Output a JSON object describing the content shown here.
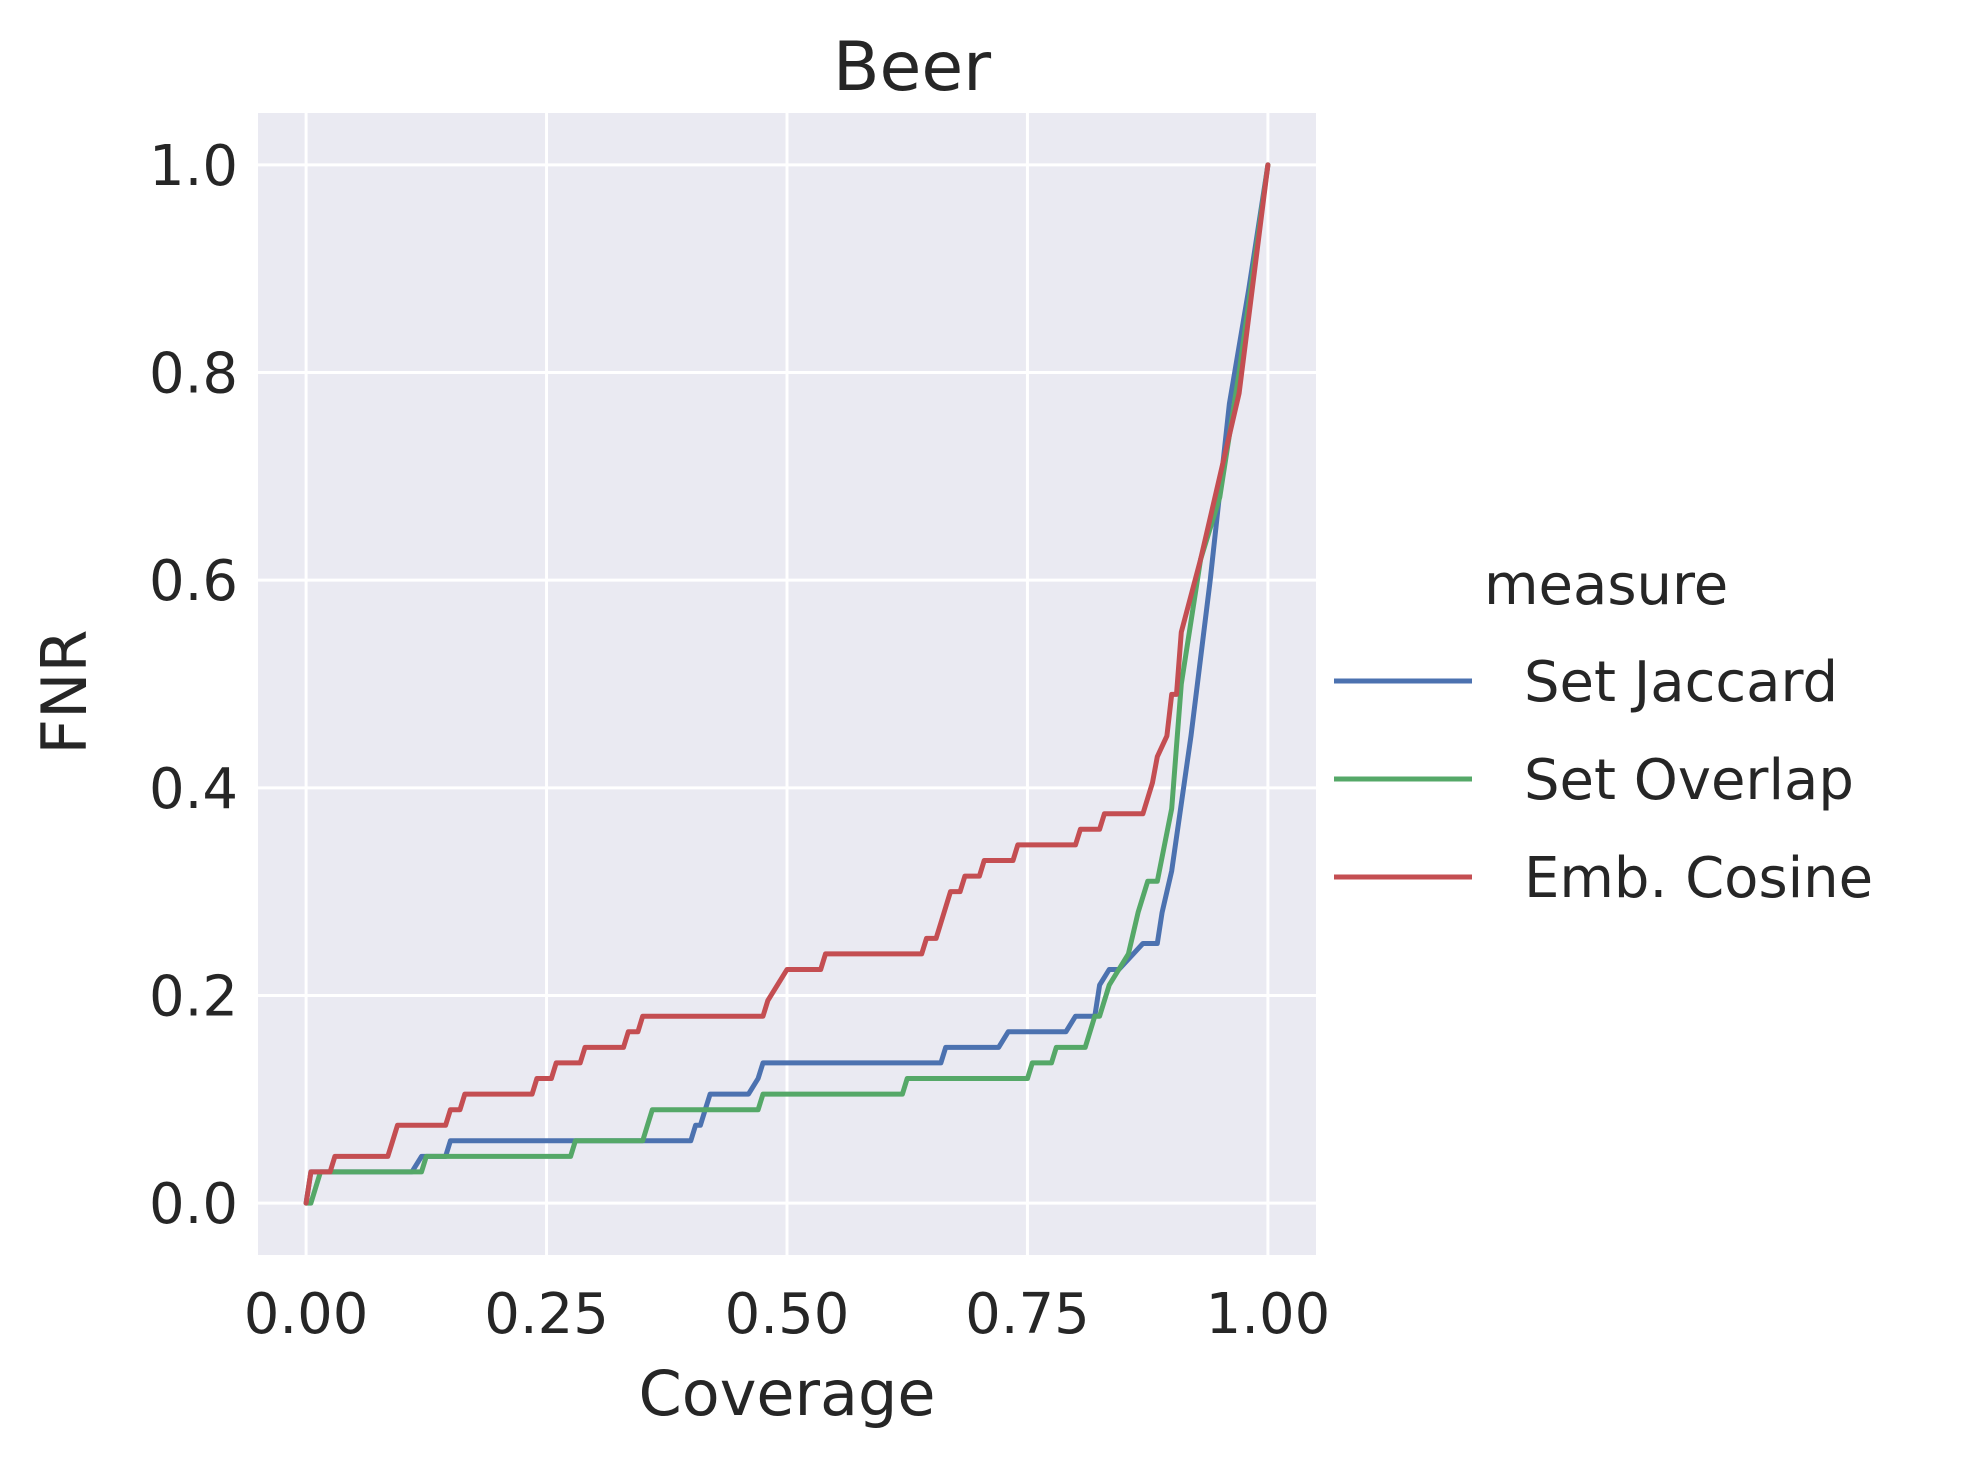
{
  "chart_data": {
    "type": "line",
    "title": "Beer",
    "xlabel": "Coverage",
    "ylabel": "FNR",
    "xlim": [
      -0.05,
      1.05
    ],
    "ylim": [
      -0.05,
      1.05
    ],
    "xticks": [
      0.0,
      0.25,
      0.5,
      0.75,
      1.0
    ],
    "xtick_labels": [
      "0.00",
      "0.25",
      "0.50",
      "0.75",
      "1.00"
    ],
    "yticks": [
      0.0,
      0.2,
      0.4,
      0.6,
      0.8,
      1.0
    ],
    "ytick_labels": [
      "0.0",
      "0.2",
      "0.4",
      "0.6",
      "0.8",
      "1.0"
    ],
    "grid": true,
    "background": "#EAEAF2",
    "legend": {
      "title": "measure",
      "placement": "right"
    },
    "series": [
      {
        "name": "Set Jaccard",
        "color": "#4C72B0",
        "x": [
          0.0,
          0.005,
          0.015,
          0.11,
          0.12,
          0.145,
          0.15,
          0.4,
          0.405,
          0.41,
          0.415,
          0.42,
          0.46,
          0.47,
          0.475,
          0.66,
          0.665,
          0.72,
          0.73,
          0.79,
          0.8,
          0.82,
          0.825,
          0.835,
          0.845,
          0.86,
          0.87,
          0.885,
          0.89,
          0.9,
          0.92,
          0.94,
          0.96,
          0.98,
          1.0
        ],
        "y": [
          0.0,
          0.03,
          0.03,
          0.03,
          0.045,
          0.045,
          0.06,
          0.06,
          0.075,
          0.075,
          0.09,
          0.105,
          0.105,
          0.12,
          0.135,
          0.135,
          0.15,
          0.15,
          0.165,
          0.165,
          0.18,
          0.18,
          0.21,
          0.225,
          0.225,
          0.24,
          0.25,
          0.25,
          0.28,
          0.32,
          0.45,
          0.6,
          0.77,
          0.88,
          1.0
        ]
      },
      {
        "name": "Set Overlap",
        "color": "#55A868",
        "x": [
          0.0,
          0.005,
          0.01,
          0.015,
          0.12,
          0.125,
          0.275,
          0.28,
          0.35,
          0.355,
          0.36,
          0.47,
          0.475,
          0.62,
          0.625,
          0.75,
          0.755,
          0.775,
          0.78,
          0.8,
          0.81,
          0.82,
          0.825,
          0.835,
          0.845,
          0.855,
          0.865,
          0.875,
          0.885,
          0.9,
          0.91,
          0.93,
          0.95,
          0.97,
          1.0
        ],
        "y": [
          0.0,
          0.0,
          0.015,
          0.03,
          0.03,
          0.045,
          0.045,
          0.06,
          0.06,
          0.075,
          0.09,
          0.09,
          0.105,
          0.105,
          0.12,
          0.12,
          0.135,
          0.135,
          0.15,
          0.15,
          0.15,
          0.18,
          0.18,
          0.21,
          0.225,
          0.24,
          0.28,
          0.31,
          0.31,
          0.38,
          0.5,
          0.62,
          0.68,
          0.8,
          1.0
        ]
      },
      {
        "name": "Emb. Cosine",
        "color": "#C44E52",
        "x": [
          0.0,
          0.005,
          0.025,
          0.03,
          0.085,
          0.09,
          0.095,
          0.1,
          0.145,
          0.15,
          0.16,
          0.165,
          0.235,
          0.24,
          0.255,
          0.26,
          0.285,
          0.29,
          0.33,
          0.335,
          0.345,
          0.35,
          0.475,
          0.48,
          0.49,
          0.5,
          0.535,
          0.54,
          0.64,
          0.645,
          0.655,
          0.66,
          0.665,
          0.67,
          0.68,
          0.685,
          0.7,
          0.705,
          0.735,
          0.74,
          0.8,
          0.805,
          0.825,
          0.83,
          0.87,
          0.875,
          0.88,
          0.885,
          0.895,
          0.9,
          0.905,
          0.91,
          0.93,
          0.95,
          0.97,
          1.0
        ],
        "y": [
          0.0,
          0.03,
          0.03,
          0.045,
          0.045,
          0.06,
          0.075,
          0.075,
          0.075,
          0.09,
          0.09,
          0.105,
          0.105,
          0.12,
          0.12,
          0.135,
          0.135,
          0.15,
          0.15,
          0.165,
          0.165,
          0.18,
          0.18,
          0.195,
          0.21,
          0.225,
          0.225,
          0.24,
          0.24,
          0.255,
          0.255,
          0.27,
          0.285,
          0.3,
          0.3,
          0.315,
          0.315,
          0.33,
          0.33,
          0.345,
          0.345,
          0.36,
          0.36,
          0.375,
          0.375,
          0.39,
          0.405,
          0.43,
          0.45,
          0.49,
          0.49,
          0.55,
          0.62,
          0.7,
          0.78,
          1.0
        ]
      }
    ]
  }
}
